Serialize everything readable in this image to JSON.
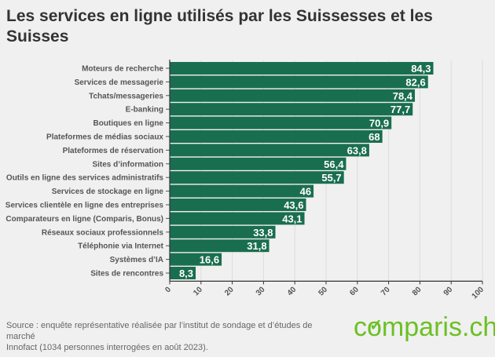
{
  "chart_data": {
    "type": "bar",
    "orientation": "horizontal",
    "title": "Les services en ligne utilisés par les Suissesses et les Suisses",
    "categories": [
      "Moteurs de recherche",
      "Services de messagerie",
      "Tchats/messageries",
      "E-banking",
      "Boutiques en ligne",
      "Plateformes de médias sociaux",
      "Plateformes de réservation",
      "Sites d’information",
      "Outils en ligne des services administratifs",
      "Services de stockage en ligne",
      "Services clientèle en ligne des entreprises",
      "Comparateurs en ligne (Comparis, Bonus)",
      "Réseaux sociaux professionnels",
      "Téléphonie via Internet",
      "Systèmes d’IA",
      "Sites de rencontres"
    ],
    "values": [
      84.3,
      82.6,
      78.4,
      77.7,
      70.9,
      68,
      63.8,
      56.4,
      55.7,
      46,
      43.6,
      43.1,
      33.8,
      31.8,
      16.6,
      8.3
    ],
    "value_labels": [
      "84,3",
      "82,6",
      "78,4",
      "77,7",
      "70,9",
      "68",
      "63,8",
      "56,4",
      "55,7",
      "46",
      "43,6",
      "43,1",
      "33,8",
      "31,8",
      "16,6",
      "8,3"
    ],
    "xlim": [
      0,
      100
    ],
    "xticks": [
      "0",
      "10",
      "20",
      "30",
      "40",
      "50",
      "60",
      "70",
      "80",
      "90",
      "100"
    ],
    "grid": true,
    "bar_color": "#1a6e50"
  },
  "footer": {
    "source_line1": "Source : enquête représentative réalisée par l’institut de sondage et d’études de marché",
    "source_line2": "Innofact (1034 personnes interrogées en août 2023).",
    "logo_text": "comparis.ch"
  }
}
